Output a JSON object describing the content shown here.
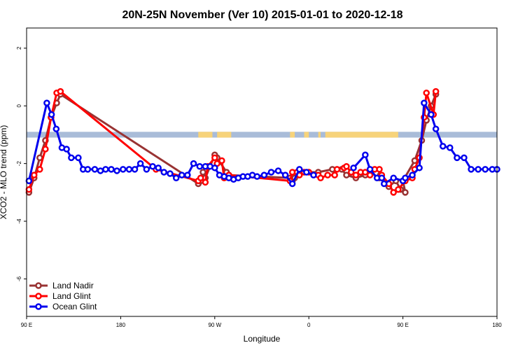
{
  "chart_data": {
    "type": "line",
    "title": "20N-25N November (Ver 10)   2015-01-01 to 2020-12-18",
    "xlabel": "Longitude",
    "ylabel": "XCO2 - MLO trend (ppm)",
    "xlim": [
      0,
      1
    ],
    "ylim": [
      -7.3,
      2.7
    ],
    "x_ticks": [
      {
        "pos": 0.0,
        "label": "90 E"
      },
      {
        "pos": 0.2,
        "label": "180"
      },
      {
        "pos": 0.4,
        "label": "90 W"
      },
      {
        "pos": 0.6,
        "label": "0"
      },
      {
        "pos": 0.8,
        "label": "90 E"
      },
      {
        "pos": 1.0,
        "label": "180"
      }
    ],
    "y_ticks": [
      {
        "value": 2,
        "label": "2"
      },
      {
        "value": 0,
        "label": "0"
      },
      {
        "value": -2,
        "label": "-2"
      },
      {
        "value": -4,
        "label": "-4"
      },
      {
        "value": -6,
        "label": "-6"
      }
    ],
    "legend": {
      "position": "bottom-left"
    },
    "map_band": {
      "ymin": -1.1,
      "ymax": -0.9,
      "ocean_color": "#a9bcd8",
      "land_color": "#f7d37a"
    },
    "series": [
      {
        "name": "Land Nadir",
        "color": "#993333",
        "x": [
          0.005,
          0.016,
          0.028,
          0.04,
          0.052,
          0.064,
          0.072,
          0.365,
          0.37,
          0.375,
          0.38,
          0.4,
          0.405,
          0.425,
          0.43,
          0.56,
          0.565,
          0.57,
          0.58,
          0.62,
          0.65,
          0.67,
          0.68,
          0.7,
          0.72,
          0.73,
          0.75,
          0.752,
          0.77,
          0.785,
          0.795,
          0.805,
          0.8,
          0.825,
          0.84,
          0.85,
          0.86,
          0.87
        ],
        "y": [
          -3.0,
          -2.5,
          -1.8,
          -1.2,
          -0.4,
          0.1,
          0.4,
          -2.7,
          -2.6,
          -2.3,
          -2.5,
          -1.7,
          -1.8,
          -2.3,
          -2.4,
          -2.5,
          -2.6,
          -2.5,
          -2.3,
          -2.3,
          -2.2,
          -2.2,
          -2.4,
          -2.5,
          -2.4,
          -2.3,
          -2.5,
          -2.4,
          -2.8,
          -2.6,
          -2.9,
          -3.0,
          -2.6,
          -1.9,
          -1.2,
          -0.5,
          0.0,
          0.4
        ]
      },
      {
        "name": "Land Glint",
        "color": "#ff0000",
        "x": [
          0.005,
          0.016,
          0.028,
          0.04,
          0.052,
          0.064,
          0.072,
          0.275,
          0.365,
          0.37,
          0.38,
          0.385,
          0.4,
          0.405,
          0.415,
          0.42,
          0.43,
          0.56,
          0.565,
          0.575,
          0.58,
          0.59,
          0.6,
          0.62,
          0.625,
          0.64,
          0.655,
          0.66,
          0.675,
          0.68,
          0.69,
          0.7,
          0.71,
          0.72,
          0.73,
          0.74,
          0.75,
          0.755,
          0.77,
          0.78,
          0.79,
          0.805,
          0.82,
          0.825,
          0.835,
          0.845,
          0.85,
          0.865,
          0.87
        ],
        "y": [
          -2.9,
          -2.4,
          -2.2,
          -1.5,
          -0.4,
          0.45,
          0.5,
          -2.2,
          -2.6,
          -2.5,
          -2.65,
          -2.1,
          -1.8,
          -2.0,
          -1.9,
          -2.5,
          -2.4,
          -2.6,
          -2.3,
          -2.3,
          -2.4,
          -2.3,
          -2.3,
          -2.4,
          -2.5,
          -2.4,
          -2.4,
          -2.2,
          -2.15,
          -2.1,
          -2.3,
          -2.4,
          -2.3,
          -2.3,
          -2.4,
          -2.2,
          -2.2,
          -2.4,
          -2.7,
          -3.0,
          -2.9,
          -2.6,
          -2.5,
          -2.2,
          -1.8,
          -0.4,
          0.45,
          -0.3,
          0.5
        ]
      },
      {
        "name": "Ocean Glint",
        "color": "#0000ee",
        "x": [
          0.005,
          0.043,
          0.053,
          0.063,
          0.075,
          0.085,
          0.095,
          0.11,
          0.12,
          0.13,
          0.145,
          0.157,
          0.168,
          0.18,
          0.192,
          0.205,
          0.218,
          0.23,
          0.242,
          0.255,
          0.268,
          0.28,
          0.292,
          0.305,
          0.318,
          0.33,
          0.342,
          0.355,
          0.368,
          0.38,
          0.39,
          0.4,
          0.41,
          0.42,
          0.43,
          0.44,
          0.45,
          0.46,
          0.47,
          0.48,
          0.49,
          0.505,
          0.52,
          0.535,
          0.55,
          0.565,
          0.58,
          0.595,
          0.61
        ],
        "y": [
          -2.6,
          0.1,
          -0.3,
          -0.8,
          -1.45,
          -1.5,
          -1.8,
          -1.8,
          -2.2,
          -2.2,
          -2.2,
          -2.25,
          -2.2,
          -2.2,
          -2.25,
          -2.2,
          -2.2,
          -2.2,
          -2.0,
          -2.2,
          -2.1,
          -2.15,
          -2.3,
          -2.35,
          -2.5,
          -2.4,
          -2.4,
          -2.0,
          -2.1,
          -2.1,
          -2.1,
          -2.15,
          -2.4,
          -2.45,
          -2.5,
          -2.55,
          -2.5,
          -2.45,
          -2.45,
          -2.4,
          -2.45,
          -2.4,
          -2.3,
          -2.25,
          -2.4,
          -2.7,
          -2.2,
          -2.3,
          -2.4
        ]
      }
    ],
    "ocean_glint_part2": {
      "x": [
        0.695,
        0.72,
        0.73,
        0.745,
        0.755,
        0.76,
        0.78,
        0.8,
        0.805,
        0.82,
        0.835,
        0.845,
        0.86,
        0.87,
        0.885,
        0.9,
        0.915,
        0.93,
        0.945,
        0.96,
        0.975,
        0.99,
        1.0
      ],
      "y": [
        -2.15,
        -1.7,
        -2.2,
        -2.5,
        -2.5,
        -2.7,
        -2.5,
        -2.6,
        -2.5,
        -2.4,
        -2.15,
        0.1,
        -0.3,
        -0.8,
        -1.4,
        -1.45,
        -1.8,
        -1.8,
        -2.2,
        -2.2,
        -2.2,
        -2.2,
        -2.2
      ]
    }
  }
}
